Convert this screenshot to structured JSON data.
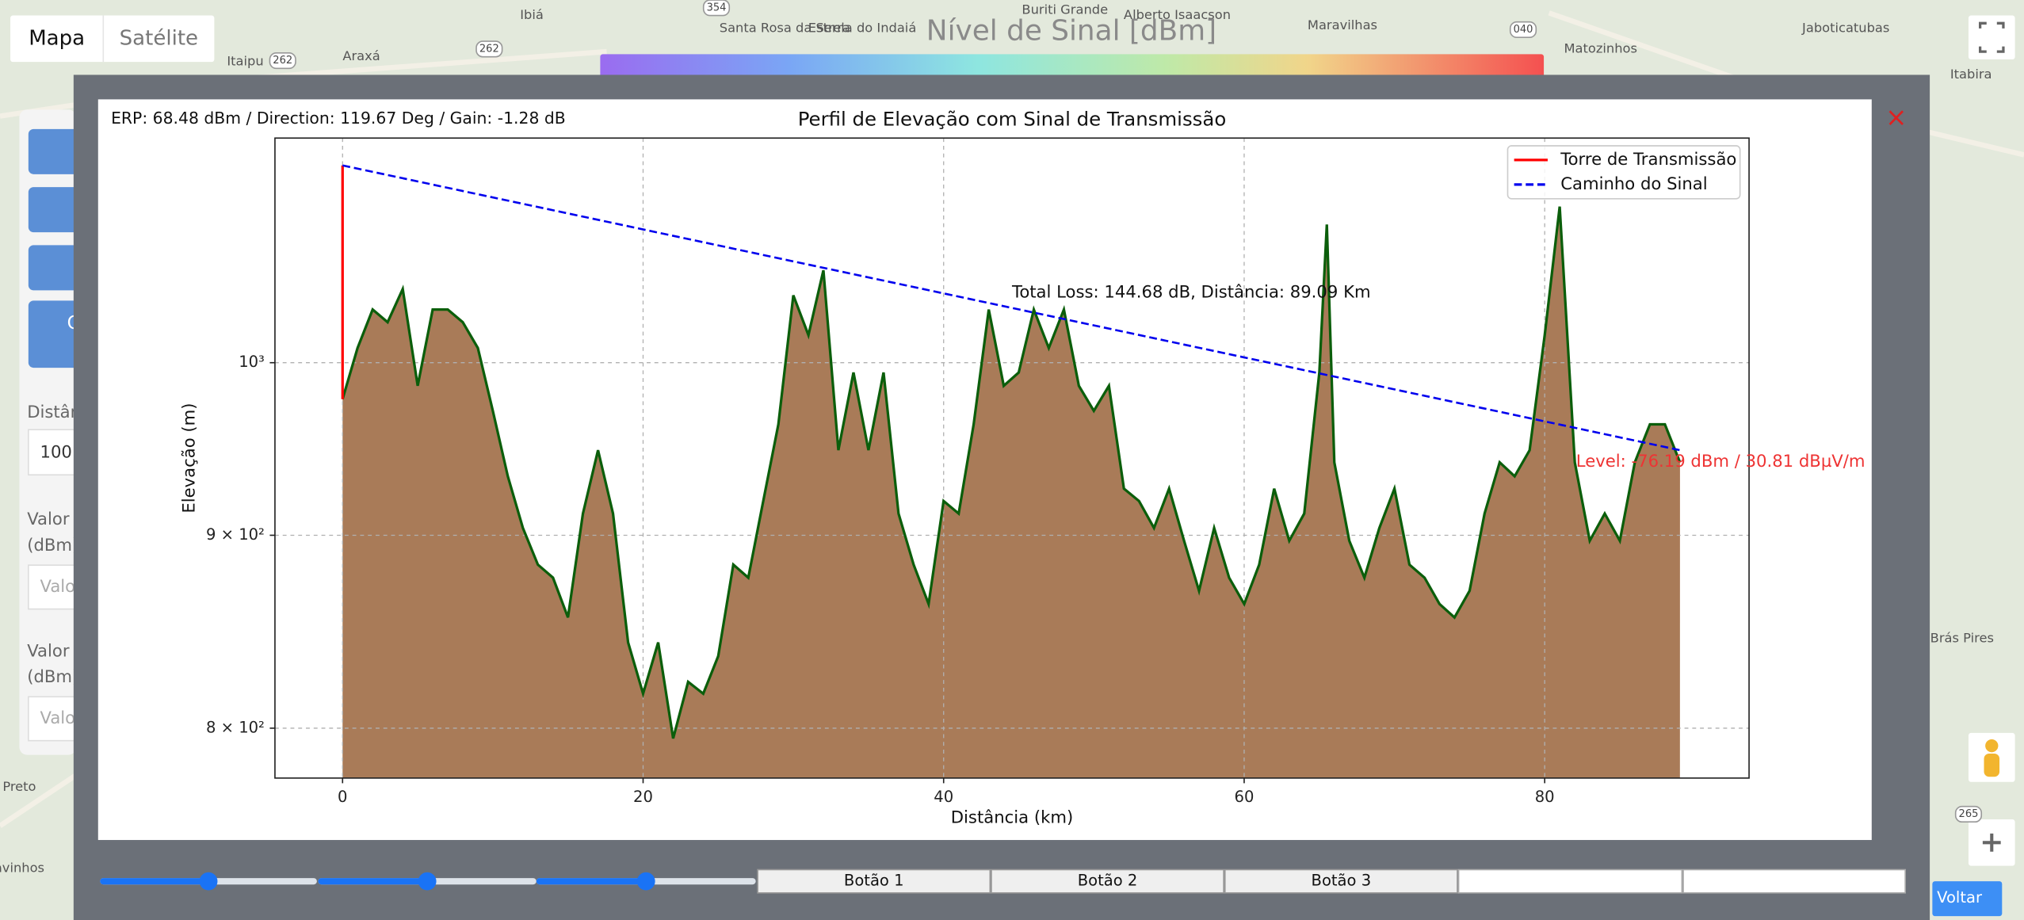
{
  "map": {
    "tabs": [
      "Mapa",
      "Satélite"
    ],
    "legend_title": "Nível de Sinal [dBm]",
    "places": [
      "Ibiá",
      "Buriti Grande",
      "Alberto Isaacson",
      "Santa Rosa da Serra",
      "Estrela do Indaiá",
      "Maravilhas",
      "Jaboticatubas",
      "Matozinhos",
      "Itaipu",
      "Araxá",
      "Itabira",
      "Preto",
      "Brás Pires",
      "avinhos"
    ],
    "road_shields": [
      "354",
      "262",
      "262",
      "040",
      "265"
    ]
  },
  "side_panel": {
    "button_label": "C",
    "distance_label": "Distân",
    "distance_value": "100",
    "fields": [
      {
        "label": "Valor",
        "unit": "(dBm)",
        "placeholder": "Valo"
      },
      {
        "label": "Valor",
        "unit": "(dBm)",
        "placeholder": "Valo"
      }
    ]
  },
  "modal": {
    "info": "ERP: 68.48 dBm / Direction: 119.67 Deg / Gain: -1.28 dB",
    "close": "×",
    "buttons": [
      "Botão 1",
      "Botão 2",
      "Botão 3"
    ]
  },
  "back_button": "Voltar",
  "chart_data": {
    "type": "area",
    "title": "Perfil de Elevação com Sinal de Transmissão",
    "x_label": "Distância (km)",
    "y_label": "Elevação (m)",
    "y_scale": "log",
    "grid": true,
    "legend_position": "upper right",
    "color": "#0b5e0b",
    "fill_color": "#a97b58",
    "xlim": [
      -4.5,
      93.6
    ],
    "ylim": [
      776,
      1147
    ],
    "xticks": [
      0,
      20,
      40,
      60,
      80
    ],
    "yticks": [
      {
        "value": 800,
        "label": "8 × 10²"
      },
      {
        "value": 900,
        "label": "9 × 10²"
      },
      {
        "value": 1000,
        "label": "10³"
      }
    ],
    "x": [
      0,
      1,
      2,
      3,
      4,
      5,
      6,
      7,
      8,
      9,
      10,
      11,
      12,
      13,
      14,
      15,
      16,
      17,
      18,
      19,
      20,
      21,
      22,
      23,
      24,
      25,
      26,
      27,
      28,
      29,
      30,
      31,
      32,
      33,
      34,
      35,
      36,
      37,
      38,
      39,
      40,
      41,
      42,
      43,
      44,
      45,
      46,
      47,
      48,
      49,
      50,
      51,
      52,
      53,
      54,
      55,
      56,
      57,
      58,
      59,
      60,
      61,
      62,
      63,
      64,
      65,
      65.5,
      66,
      67,
      68,
      69,
      70,
      71,
      72,
      73,
      74,
      75,
      76,
      77,
      78,
      79,
      80,
      81,
      82,
      83,
      84,
      85,
      86,
      87,
      88,
      89
    ],
    "values": [
      978,
      1009,
      1033,
      1025,
      1046,
      986,
      1033,
      1033,
      1025,
      1009,
      971,
      933,
      904,
      884,
      877,
      856,
      912,
      948,
      912,
      843,
      817,
      843,
      795,
      823,
      817,
      836,
      884,
      877,
      919,
      963,
      1042,
      1017,
      1058,
      948,
      994,
      948,
      994,
      912,
      884,
      863,
      919,
      912,
      963,
      1033,
      986,
      994,
      1033,
      1009,
      1033,
      986,
      971,
      986,
      926,
      919,
      904,
      926,
      897,
      870,
      904,
      877,
      863,
      884,
      926,
      897,
      912,
      994,
      1088,
      941,
      897,
      877,
      904,
      926,
      884,
      877,
      863,
      856,
      870,
      912,
      941,
      933,
      948,
      1017,
      1100,
      941,
      897,
      912,
      897,
      941,
      963,
      963,
      941
    ],
    "series": [
      {
        "name": "Torre de Transmissão",
        "color": "#ff0000",
        "style": "solid",
        "x": [
          0,
          0
        ],
        "values": [
          978,
          1128
        ]
      },
      {
        "name": "Caminho do Sinal",
        "color": "#0000ee",
        "style": "dashed",
        "x": [
          0,
          89
        ],
        "values": [
          1128,
          948
        ]
      }
    ],
    "annotations": [
      {
        "text": "Total Loss: 144.68 dB, Distância: 89.09 Km",
        "color": "#111111"
      },
      {
        "text": "Level: -76.19 dBm / 30.81 dBµV/m",
        "color": "#ee3333"
      }
    ]
  }
}
